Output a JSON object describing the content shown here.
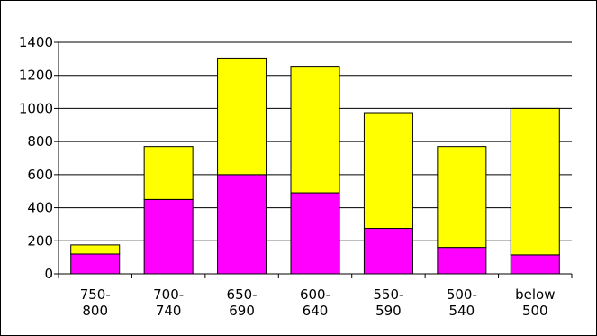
{
  "chart_data": {
    "type": "bar",
    "stacked": true,
    "categories": [
      [
        "750-",
        "800"
      ],
      [
        "700-",
        "740"
      ],
      [
        "650-",
        "690"
      ],
      [
        "600-",
        "640"
      ],
      [
        "550-",
        "590"
      ],
      [
        "500-",
        "540"
      ],
      [
        "below",
        "500"
      ]
    ],
    "series": [
      {
        "color": "#ff00ff",
        "values": [
          120,
          450,
          600,
          490,
          275,
          160,
          115
        ]
      },
      {
        "color": "#ffff00",
        "values": [
          55,
          320,
          705,
          765,
          700,
          610,
          885
        ]
      }
    ],
    "yticks": [
      "0",
      "200",
      "400",
      "600",
      "800",
      "1000",
      "1200",
      "1400"
    ],
    "ylim": [
      0,
      1400
    ],
    "grid": true,
    "legend": "none"
  }
}
